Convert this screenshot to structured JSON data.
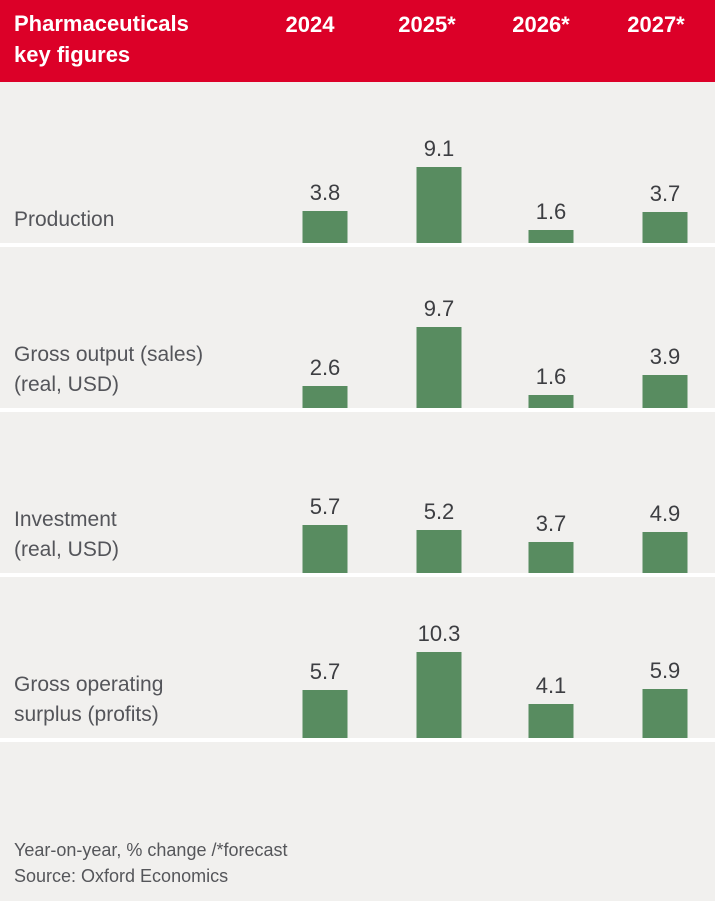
{
  "header": {
    "title_line1": "Pharmaceuticals",
    "title_line2": "key figures",
    "columns": [
      "2024",
      "2025*",
      "2026*",
      "2027*"
    ]
  },
  "chart_data": {
    "type": "bar",
    "title": "Pharmaceuticals key figures",
    "categories": [
      "2024",
      "2025*",
      "2026*",
      "2027*"
    ],
    "series": [
      {
        "name": "Production",
        "label_lines": [
          "Production"
        ],
        "values": [
          3.8,
          9.1,
          1.6,
          3.7
        ]
      },
      {
        "name": "Gross output (sales) (real, USD)",
        "label_lines": [
          "Gross output (sales)",
          "(real, USD)"
        ],
        "values": [
          2.6,
          9.7,
          1.6,
          3.9
        ]
      },
      {
        "name": "Investment (real, USD)",
        "label_lines": [
          "Investment",
          "(real, USD)"
        ],
        "values": [
          5.7,
          5.2,
          3.7,
          4.9
        ]
      },
      {
        "name": "Gross operating surplus (profits)",
        "label_lines": [
          "Gross operating",
          "surplus (profits)"
        ],
        "values": [
          5.7,
          10.3,
          4.1,
          5.9
        ]
      }
    ],
    "ylim": [
      0,
      10.3
    ],
    "value_labels_shown": true,
    "legend": "none",
    "grid": "off",
    "note": "Year-on-year, % change /*forecast",
    "source": "Source: Oxford Economics"
  },
  "footer": {
    "note": "Year-on-year, % change /*forecast",
    "source": "Source: Oxford Economics"
  },
  "colors": {
    "header_background": "#DC0028",
    "header_text": "#FFFFFF",
    "row_background": "#F1F0EE",
    "separator": "#FFFFFF",
    "bar_fill": "#588C60",
    "value_text": "#3D3E42",
    "label_text": "#54555A"
  }
}
